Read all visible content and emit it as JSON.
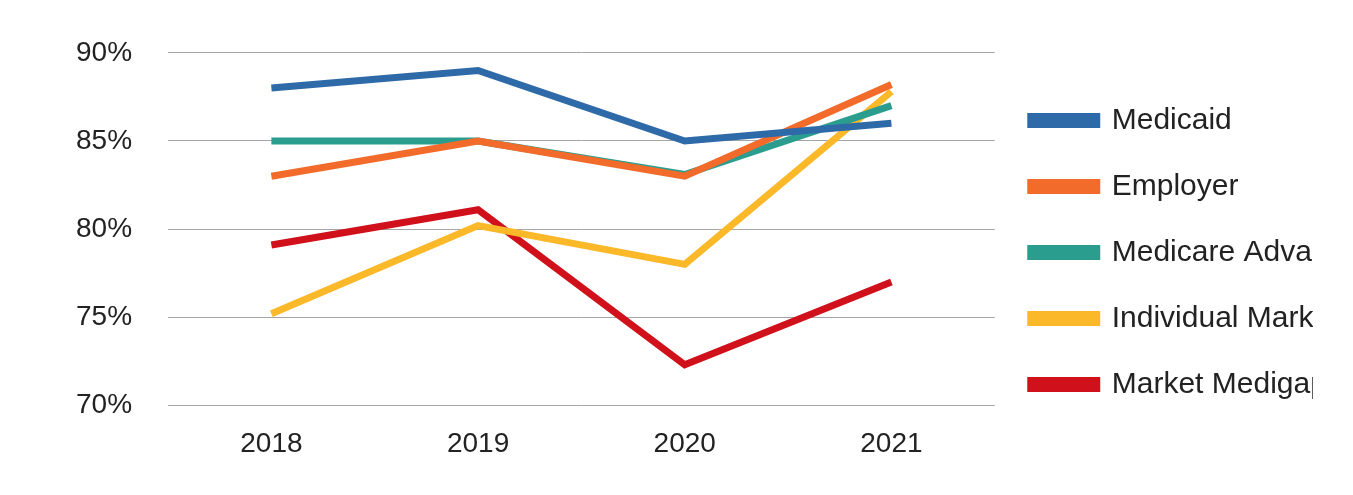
{
  "chart_data": {
    "type": "line",
    "categories": [
      "2018",
      "2019",
      "2020",
      "2021"
    ],
    "series": [
      {
        "name": "Medicaid",
        "color": "#2e6aa8",
        "values": [
          88,
          89,
          85,
          86
        ]
      },
      {
        "name": "Employer",
        "color": "#f26b2a",
        "values": [
          83,
          85,
          83,
          88.2
        ]
      },
      {
        "name": "Medicare Advantage",
        "color": "#2a9d8f",
        "values": [
          85,
          85,
          83.1,
          87
        ]
      },
      {
        "name": "Individual Market",
        "color": "#fbb829",
        "values": [
          75.2,
          80.2,
          78,
          87.8
        ]
      },
      {
        "name": "Market Medigap",
        "color": "#d0101a",
        "values": [
          79.1,
          81.1,
          72.3,
          77
        ]
      }
    ],
    "ylim": [
      70,
      90
    ],
    "yticks": [
      {
        "value": 70,
        "label": "70%"
      },
      {
        "value": 75,
        "label": "75%"
      },
      {
        "value": 80,
        "label": "80%"
      },
      {
        "value": 85,
        "label": "85%"
      },
      {
        "value": 90,
        "label": "90%"
      }
    ],
    "grid": true,
    "legend": "right"
  }
}
